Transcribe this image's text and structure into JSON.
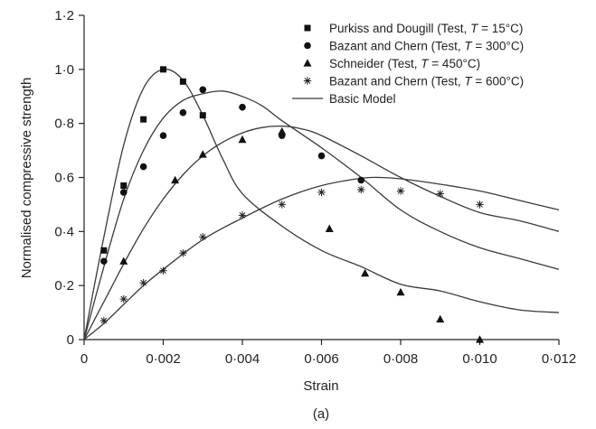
{
  "chart_data": {
    "type": "scatter",
    "xlabel": "Strain",
    "ylabel": "Normalised compressive strength",
    "caption": "(a)",
    "xlim": [
      0,
      0.012
    ],
    "ylim": [
      0,
      1.2
    ],
    "x_ticks": [
      0,
      0.002,
      0.004,
      0.006,
      0.008,
      0.01,
      0.012
    ],
    "x_tick_labels": [
      "0",
      "0·002",
      "0·004",
      "0·006",
      "0·008",
      "0·010",
      "0·012"
    ],
    "y_ticks": [
      0,
      0.2,
      0.4,
      0.6,
      0.8,
      1.0,
      1.2
    ],
    "y_tick_labels": [
      "0",
      "0·2",
      "0·4",
      "0·6",
      "0·8",
      "1·0",
      "1·2"
    ],
    "grid": false,
    "legend_position": "top-right",
    "series": [
      {
        "name_prefix": "Purkiss and Dougill (Test, ",
        "name_var": "T",
        "name_suffix": " = 15°C)",
        "marker": "square",
        "points": [
          [
            0.0005,
            0.33
          ],
          [
            0.001,
            0.57
          ],
          [
            0.0015,
            0.815
          ],
          [
            0.002,
            1.0
          ],
          [
            0.0025,
            0.955
          ],
          [
            0.003,
            0.83
          ]
        ]
      },
      {
        "name_prefix": "Bazant and Chern (Test, ",
        "name_var": "T",
        "name_suffix": " = 300°C)",
        "marker": "circle",
        "points": [
          [
            0.0005,
            0.29
          ],
          [
            0.001,
            0.545
          ],
          [
            0.0015,
            0.64
          ],
          [
            0.002,
            0.755
          ],
          [
            0.0025,
            0.84
          ],
          [
            0.003,
            0.925
          ],
          [
            0.004,
            0.86
          ],
          [
            0.005,
            0.755
          ],
          [
            0.006,
            0.68
          ],
          [
            0.007,
            0.59
          ]
        ]
      },
      {
        "name_prefix": "Schneider (Test, ",
        "name_var": "T",
        "name_suffix": " = 450°C)",
        "marker": "triangle",
        "points": [
          [
            0.001,
            0.29
          ],
          [
            0.0023,
            0.59
          ],
          [
            0.003,
            0.685
          ],
          [
            0.004,
            0.74
          ],
          [
            0.005,
            0.77
          ],
          [
            0.0062,
            0.41
          ],
          [
            0.0071,
            0.245
          ],
          [
            0.008,
            0.175
          ],
          [
            0.009,
            0.075
          ],
          [
            0.01,
            0.0
          ]
        ]
      },
      {
        "name_prefix": "Bazant and Chern (Test, ",
        "name_var": "T",
        "name_suffix": " = 600°C)",
        "marker": "asterisk",
        "points": [
          [
            0.0005,
            0.07
          ],
          [
            0.001,
            0.15
          ],
          [
            0.0015,
            0.21
          ],
          [
            0.002,
            0.255
          ],
          [
            0.0025,
            0.32
          ],
          [
            0.003,
            0.38
          ],
          [
            0.004,
            0.46
          ],
          [
            0.005,
            0.5
          ],
          [
            0.006,
            0.545
          ],
          [
            0.007,
            0.555
          ],
          [
            0.008,
            0.55
          ],
          [
            0.009,
            0.54
          ],
          [
            0.01,
            0.5
          ]
        ]
      }
    ],
    "model": {
      "name": "Basic Model",
      "curves": [
        [
          [
            0,
            0
          ],
          [
            0.0005,
            0.38
          ],
          [
            0.001,
            0.72
          ],
          [
            0.0015,
            0.93
          ],
          [
            0.002,
            1.0
          ],
          [
            0.0025,
            0.96
          ],
          [
            0.003,
            0.83
          ],
          [
            0.0035,
            0.67
          ],
          [
            0.004,
            0.54
          ],
          [
            0.005,
            0.42
          ],
          [
            0.006,
            0.33
          ],
          [
            0.007,
            0.27
          ],
          [
            0.008,
            0.205
          ],
          [
            0.009,
            0.18
          ],
          [
            0.01,
            0.14
          ],
          [
            0.011,
            0.11
          ],
          [
            0.012,
            0.1
          ]
        ],
        [
          [
            0,
            0
          ],
          [
            0.0005,
            0.27
          ],
          [
            0.001,
            0.52
          ],
          [
            0.0015,
            0.7
          ],
          [
            0.002,
            0.82
          ],
          [
            0.0025,
            0.885
          ],
          [
            0.003,
            0.91
          ],
          [
            0.0035,
            0.92
          ],
          [
            0.004,
            0.9
          ],
          [
            0.0045,
            0.865
          ],
          [
            0.005,
            0.81
          ],
          [
            0.006,
            0.71
          ],
          [
            0.007,
            0.6
          ],
          [
            0.008,
            0.48
          ],
          [
            0.009,
            0.4
          ],
          [
            0.01,
            0.34
          ],
          [
            0.011,
            0.3
          ],
          [
            0.012,
            0.26
          ]
        ],
        [
          [
            0,
            0
          ],
          [
            0.0005,
            0.14
          ],
          [
            0.001,
            0.28
          ],
          [
            0.0015,
            0.41
          ],
          [
            0.002,
            0.52
          ],
          [
            0.0025,
            0.61
          ],
          [
            0.003,
            0.68
          ],
          [
            0.0035,
            0.73
          ],
          [
            0.004,
            0.765
          ],
          [
            0.0045,
            0.785
          ],
          [
            0.005,
            0.79
          ],
          [
            0.0055,
            0.78
          ],
          [
            0.006,
            0.755
          ],
          [
            0.007,
            0.68
          ],
          [
            0.008,
            0.6
          ],
          [
            0.009,
            0.53
          ],
          [
            0.01,
            0.47
          ],
          [
            0.011,
            0.44
          ],
          [
            0.012,
            0.4
          ]
        ],
        [
          [
            0,
            0
          ],
          [
            0.0005,
            0.06
          ],
          [
            0.001,
            0.13
          ],
          [
            0.0015,
            0.2
          ],
          [
            0.002,
            0.26
          ],
          [
            0.003,
            0.37
          ],
          [
            0.004,
            0.45
          ],
          [
            0.005,
            0.52
          ],
          [
            0.006,
            0.57
          ],
          [
            0.007,
            0.597
          ],
          [
            0.0075,
            0.6
          ],
          [
            0.008,
            0.595
          ],
          [
            0.009,
            0.575
          ],
          [
            0.01,
            0.55
          ],
          [
            0.011,
            0.515
          ],
          [
            0.012,
            0.48
          ]
        ]
      ]
    }
  }
}
